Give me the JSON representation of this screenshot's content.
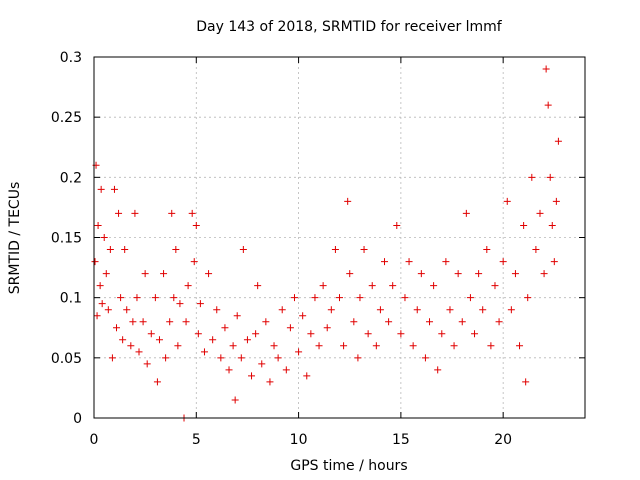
{
  "chart_data": {
    "type": "scatter",
    "title": "Day 143 of 2018, SRMTID for receiver lmmf",
    "xlabel": "GPS time / hours",
    "ylabel": "SRMTID / TECUs",
    "xlim": [
      0,
      24
    ],
    "ylim": [
      0,
      0.3
    ],
    "xticks": [
      0,
      5,
      10,
      15,
      20
    ],
    "xtick_labels": [
      "0",
      "5",
      "10",
      "15",
      "20"
    ],
    "yticks": [
      0,
      0.05,
      0.1,
      0.15,
      0.2,
      0.25,
      0.3
    ],
    "ytick_labels": [
      "0",
      "0.05",
      "0.1",
      "0.15",
      "0.2",
      "0.25",
      "0.3"
    ],
    "grid": true,
    "marker": "+",
    "color": "#e00000",
    "series": [
      {
        "name": "SRMTID",
        "points": [
          [
            0.05,
            0.13
          ],
          [
            0.1,
            0.21
          ],
          [
            0.15,
            0.085
          ],
          [
            0.2,
            0.16
          ],
          [
            0.3,
            0.11
          ],
          [
            0.35,
            0.19
          ],
          [
            0.4,
            0.095
          ],
          [
            0.5,
            0.15
          ],
          [
            0.6,
            0.12
          ],
          [
            0.7,
            0.09
          ],
          [
            0.8,
            0.14
          ],
          [
            0.9,
            0.05
          ],
          [
            1.0,
            0.19
          ],
          [
            1.1,
            0.075
          ],
          [
            1.2,
            0.17
          ],
          [
            1.3,
            0.1
          ],
          [
            1.4,
            0.065
          ],
          [
            1.5,
            0.14
          ],
          [
            1.6,
            0.09
          ],
          [
            1.8,
            0.06
          ],
          [
            1.9,
            0.08
          ],
          [
            2.0,
            0.17
          ],
          [
            2.1,
            0.1
          ],
          [
            2.2,
            0.055
          ],
          [
            2.4,
            0.08
          ],
          [
            2.5,
            0.12
          ],
          [
            2.6,
            0.045
          ],
          [
            2.8,
            0.07
          ],
          [
            3.0,
            0.1
          ],
          [
            3.1,
            0.03
          ],
          [
            3.2,
            0.065
          ],
          [
            3.4,
            0.12
          ],
          [
            3.5,
            0.05
          ],
          [
            3.7,
            0.08
          ],
          [
            3.8,
            0.17
          ],
          [
            3.9,
            0.1
          ],
          [
            4.0,
            0.14
          ],
          [
            4.1,
            0.06
          ],
          [
            4.2,
            0.095
          ],
          [
            4.4,
            0.0
          ],
          [
            4.5,
            0.08
          ],
          [
            4.6,
            0.11
          ],
          [
            4.8,
            0.17
          ],
          [
            4.9,
            0.13
          ],
          [
            5.0,
            0.16
          ],
          [
            5.1,
            0.07
          ],
          [
            5.2,
            0.095
          ],
          [
            5.4,
            0.055
          ],
          [
            5.6,
            0.12
          ],
          [
            5.8,
            0.065
          ],
          [
            6.0,
            0.09
          ],
          [
            6.2,
            0.05
          ],
          [
            6.4,
            0.075
          ],
          [
            6.6,
            0.04
          ],
          [
            6.8,
            0.06
          ],
          [
            6.9,
            0.015
          ],
          [
            7.0,
            0.085
          ],
          [
            7.2,
            0.05
          ],
          [
            7.3,
            0.14
          ],
          [
            7.5,
            0.065
          ],
          [
            7.7,
            0.035
          ],
          [
            7.9,
            0.07
          ],
          [
            8.0,
            0.11
          ],
          [
            8.2,
            0.045
          ],
          [
            8.4,
            0.08
          ],
          [
            8.6,
            0.03
          ],
          [
            8.8,
            0.06
          ],
          [
            9.0,
            0.05
          ],
          [
            9.2,
            0.09
          ],
          [
            9.4,
            0.04
          ],
          [
            9.6,
            0.075
          ],
          [
            9.8,
            0.1
          ],
          [
            10.0,
            0.055
          ],
          [
            10.2,
            0.085
          ],
          [
            10.4,
            0.035
          ],
          [
            10.6,
            0.07
          ],
          [
            10.8,
            0.1
          ],
          [
            11.0,
            0.06
          ],
          [
            11.2,
            0.11
          ],
          [
            11.4,
            0.075
          ],
          [
            11.6,
            0.09
          ],
          [
            11.8,
            0.14
          ],
          [
            12.0,
            0.1
          ],
          [
            12.2,
            0.06
          ],
          [
            12.4,
            0.18
          ],
          [
            12.5,
            0.12
          ],
          [
            12.7,
            0.08
          ],
          [
            12.9,
            0.05
          ],
          [
            13.0,
            0.1
          ],
          [
            13.2,
            0.14
          ],
          [
            13.4,
            0.07
          ],
          [
            13.6,
            0.11
          ],
          [
            13.8,
            0.06
          ],
          [
            14.0,
            0.09
          ],
          [
            14.2,
            0.13
          ],
          [
            14.4,
            0.08
          ],
          [
            14.6,
            0.11
          ],
          [
            14.8,
            0.16
          ],
          [
            15.0,
            0.07
          ],
          [
            15.2,
            0.1
          ],
          [
            15.4,
            0.13
          ],
          [
            15.6,
            0.06
          ],
          [
            15.8,
            0.09
          ],
          [
            16.0,
            0.12
          ],
          [
            16.2,
            0.05
          ],
          [
            16.4,
            0.08
          ],
          [
            16.6,
            0.11
          ],
          [
            16.8,
            0.04
          ],
          [
            17.0,
            0.07
          ],
          [
            17.2,
            0.13
          ],
          [
            17.4,
            0.09
          ],
          [
            17.6,
            0.06
          ],
          [
            17.8,
            0.12
          ],
          [
            18.0,
            0.08
          ],
          [
            18.2,
            0.17
          ],
          [
            18.4,
            0.1
          ],
          [
            18.6,
            0.07
          ],
          [
            18.8,
            0.12
          ],
          [
            19.0,
            0.09
          ],
          [
            19.2,
            0.14
          ],
          [
            19.4,
            0.06
          ],
          [
            19.6,
            0.11
          ],
          [
            19.8,
            0.08
          ],
          [
            20.0,
            0.13
          ],
          [
            20.2,
            0.18
          ],
          [
            20.4,
            0.09
          ],
          [
            20.6,
            0.12
          ],
          [
            20.8,
            0.06
          ],
          [
            21.0,
            0.16
          ],
          [
            21.1,
            0.03
          ],
          [
            21.2,
            0.1
          ],
          [
            21.4,
            0.2
          ],
          [
            21.6,
            0.14
          ],
          [
            21.8,
            0.17
          ],
          [
            22.0,
            0.12
          ],
          [
            22.1,
            0.29
          ],
          [
            22.2,
            0.26
          ],
          [
            22.3,
            0.2
          ],
          [
            22.4,
            0.16
          ],
          [
            22.5,
            0.13
          ],
          [
            22.6,
            0.18
          ],
          [
            22.7,
            0.23
          ]
        ]
      }
    ]
  }
}
